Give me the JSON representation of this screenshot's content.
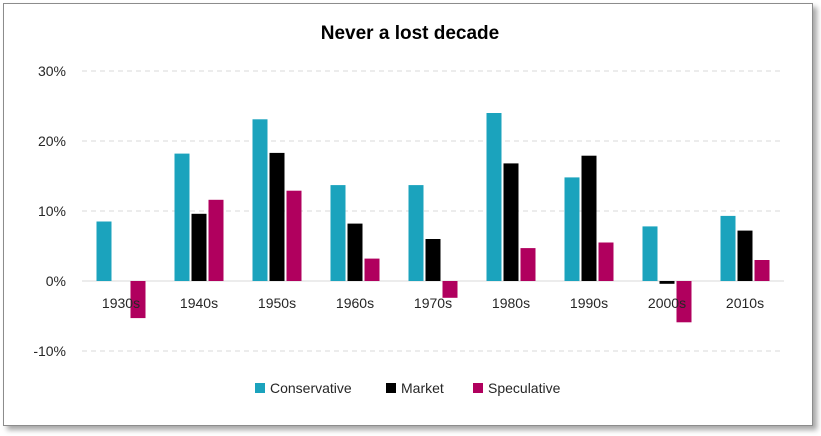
{
  "chart_data": {
    "type": "bar",
    "title": "Never a lost decade",
    "xlabel": "",
    "ylabel": "",
    "categories": [
      "1930s",
      "1940s",
      "1950s",
      "1960s",
      "1970s",
      "1980s",
      "1990s",
      "2000s",
      "2010s"
    ],
    "series": [
      {
        "name": "Conservative",
        "color": "#1ba3bd",
        "values": [
          8.5,
          18.2,
          23.1,
          13.7,
          13.7,
          24.0,
          14.8,
          7.8,
          9.3
        ]
      },
      {
        "name": "Market",
        "color": "#000000",
        "values": [
          0.0,
          9.6,
          18.3,
          8.2,
          6.0,
          16.8,
          17.9,
          -0.4,
          7.2
        ]
      },
      {
        "name": "Speculative",
        "color": "#b0005e",
        "values": [
          -5.3,
          11.6,
          12.9,
          3.2,
          -2.4,
          4.7,
          5.5,
          -5.9,
          3.0
        ]
      }
    ],
    "ylim": [
      -10,
      30
    ],
    "yticks": [
      "-10%",
      "0%",
      "10%",
      "20%",
      "30%"
    ],
    "ytick_values": [
      -10,
      0,
      10,
      20,
      30
    ],
    "grid": true,
    "legend_position": "bottom"
  }
}
